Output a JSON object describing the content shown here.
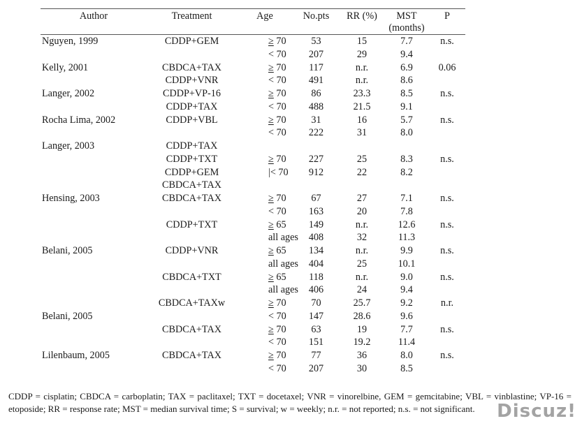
{
  "table": {
    "headers": {
      "author": "Author",
      "treatment": "Treatment",
      "age": "Age",
      "nopts": "No.pts",
      "rr": "RR (%)",
      "mst": "MST\n(months)",
      "p": "P"
    },
    "rows": [
      {
        "author": "Nguyen, 1999",
        "treatment": "CDDP+GEM",
        "age_op": "≥",
        "age": "70",
        "nopts": "53",
        "rr": "15",
        "mst": "7.7",
        "p": "n.s."
      },
      {
        "author": "",
        "treatment": "",
        "age_op": "<",
        "age": "70",
        "nopts": "207",
        "rr": "29",
        "mst": "9.4",
        "p": ""
      },
      {
        "author": "Kelly, 2001",
        "treatment": "CBDCA+TAX",
        "age_op": "≥",
        "age": "70",
        "nopts": "117",
        "rr": "n.r.",
        "mst": "6.9",
        "p": "0.06"
      },
      {
        "author": "",
        "treatment": "CDDP+VNR",
        "age_op": "<",
        "age": "70",
        "nopts": "491",
        "rr": "n.r.",
        "mst": "8.6",
        "p": ""
      },
      {
        "author": "Langer, 2002",
        "treatment": "CDDP+VP-16",
        "age_op": "≥",
        "age": "70",
        "nopts": "86",
        "rr": "23.3",
        "mst": "8.5",
        "p": "n.s."
      },
      {
        "author": "",
        "treatment": "CDDP+TAX",
        "age_op": "<",
        "age": "70",
        "nopts": "488",
        "rr": "21.5",
        "mst": "9.1",
        "p": ""
      },
      {
        "author": "Rocha Lima, 2002",
        "treatment": "CDDP+VBL",
        "age_op": "≥",
        "age": "70",
        "nopts": "31",
        "rr": "16",
        "mst": "5.7",
        "p": "n.s."
      },
      {
        "author": "",
        "treatment": "",
        "age_op": "<",
        "age": "70",
        "nopts": "222",
        "rr": "31",
        "mst": "8.0",
        "p": ""
      },
      {
        "author": "Langer, 2003",
        "treatment": "CDDP+TAX",
        "age_op": "",
        "age": "",
        "nopts": "",
        "rr": "",
        "mst": "",
        "p": ""
      },
      {
        "author": "",
        "treatment": "CDDP+TXT",
        "age_op": "≥",
        "age": "70",
        "nopts": "227",
        "rr": "25",
        "mst": "8.3",
        "p": "n.s."
      },
      {
        "author": "",
        "treatment": "CDDP+GEM",
        "age_op": "|<",
        "age": "70",
        "nopts": "912",
        "rr": "22",
        "mst": "8.2",
        "p": ""
      },
      {
        "author": "",
        "treatment": "CBDCA+TAX",
        "age_op": "",
        "age": "",
        "nopts": "",
        "rr": "",
        "mst": "",
        "p": ""
      },
      {
        "author": "Hensing, 2003",
        "treatment": "CBDCA+TAX",
        "age_op": "≥",
        "age": "70",
        "nopts": "67",
        "rr": "27",
        "mst": "7.1",
        "p": "n.s."
      },
      {
        "author": "",
        "treatment": "",
        "age_op": "<",
        "age": "70",
        "nopts": "163",
        "rr": "20",
        "mst": "7.8",
        "p": ""
      },
      {
        "author": "",
        "treatment": "CDDP+TXT",
        "age_op": "≥",
        "age": "65",
        "nopts": "149",
        "rr": "n.r.",
        "mst": "12.6",
        "p": "n.s."
      },
      {
        "author": "",
        "treatment": "",
        "age_op": "",
        "age": "all ages",
        "nopts": "408",
        "rr": "32",
        "mst": "11.3",
        "p": ""
      },
      {
        "author": "Belani, 2005",
        "treatment": "CDDP+VNR",
        "age_op": "≥",
        "age": "65",
        "nopts": "134",
        "rr": "n.r.",
        "mst": "9.9",
        "p": "n.s."
      },
      {
        "author": "",
        "treatment": "",
        "age_op": "",
        "age": "all ages",
        "nopts": "404",
        "rr": "25",
        "mst": "10.1",
        "p": ""
      },
      {
        "author": "",
        "treatment": "CBDCA+TXT",
        "age_op": "≥",
        "age": "65",
        "nopts": "118",
        "rr": "n.r.",
        "mst": "9.0",
        "p": "n.s."
      },
      {
        "author": "",
        "treatment": "",
        "age_op": "",
        "age": "all ages",
        "nopts": "406",
        "rr": "24",
        "mst": "9.4",
        "p": ""
      },
      {
        "author": "",
        "treatment": "CBDCA+TAXw",
        "age_op": "≥",
        "age": "70",
        "nopts": "70",
        "rr": "25.7",
        "mst": "9.2",
        "p": "n.r."
      },
      {
        "author": "Belani, 2005",
        "treatment": "",
        "age_op": "<",
        "age": "70",
        "nopts": "147",
        "rr": "28.6",
        "mst": "9.6",
        "p": ""
      },
      {
        "author": "",
        "treatment": "CBDCA+TAX",
        "age_op": "≥",
        "age": "70",
        "nopts": "63",
        "rr": "19",
        "mst": "7.7",
        "p": "n.s."
      },
      {
        "author": "",
        "treatment": "",
        "age_op": "<",
        "age": "70",
        "nopts": "151",
        "rr": "19.2",
        "mst": "11.4",
        "p": ""
      },
      {
        "author": "Lilenbaum, 2005",
        "treatment": "CBDCA+TAX",
        "age_op": "≥",
        "age": "70",
        "nopts": "77",
        "rr": "36",
        "mst": "8.0",
        "p": "n.s."
      },
      {
        "author": "",
        "treatment": "",
        "age_op": "<",
        "age": "70",
        "nopts": "207",
        "rr": "30",
        "mst": "8.5",
        "p": ""
      }
    ]
  },
  "footnote": "CDDP = cisplatin; CBDCA = carboplatin; TAX = paclitaxel; TXT = docetaxel; VNR = vinorelbine, GEM = gemcitabine; VBL = vinblastine; VP-16 = etoposide; RR = response rate; MST = median survival time; S = survival; w = weekly; n.r. = not reported; n.s. = not significant.",
  "watermark": "Discuz!"
}
